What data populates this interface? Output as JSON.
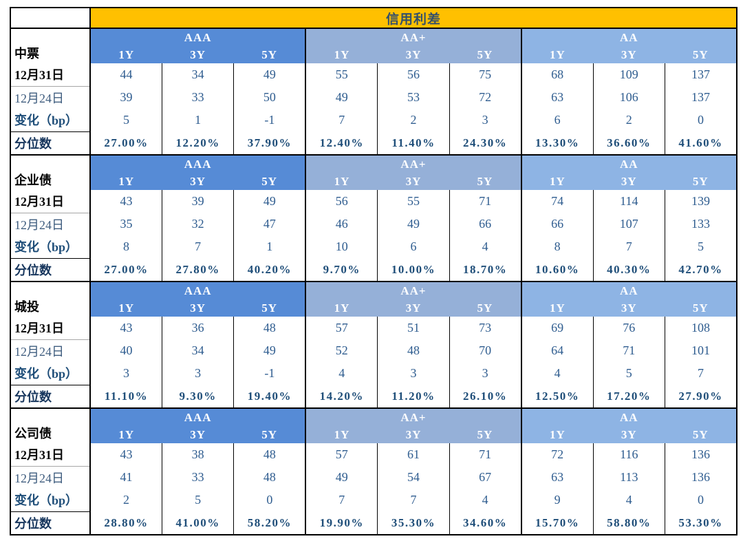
{
  "chart_data": {
    "type": "table",
    "title": "信用利差",
    "column_groups": [
      "AAA",
      "AA+",
      "AA"
    ],
    "sub_columns": [
      "1Y",
      "3Y",
      "5Y"
    ],
    "row_labels": [
      "12月31日",
      "12月24日",
      "变化（bp）",
      "分位数"
    ],
    "sections": [
      {
        "name": "中票",
        "rows": [
          [
            44,
            34,
            49,
            55,
            56,
            75,
            68,
            109,
            137
          ],
          [
            39,
            33,
            50,
            49,
            53,
            72,
            63,
            106,
            137
          ],
          [
            5,
            1,
            -1,
            7,
            2,
            3,
            6,
            2,
            0
          ],
          [
            "27.00%",
            "12.20%",
            "37.90%",
            "12.40%",
            "11.40%",
            "24.30%",
            "13.30%",
            "36.60%",
            "41.60%"
          ]
        ]
      },
      {
        "name": "企业债",
        "rows": [
          [
            43,
            39,
            49,
            56,
            55,
            71,
            74,
            114,
            139
          ],
          [
            35,
            32,
            47,
            46,
            49,
            66,
            66,
            107,
            133
          ],
          [
            8,
            7,
            1,
            10,
            6,
            4,
            8,
            7,
            5
          ],
          [
            "27.00%",
            "27.80%",
            "40.20%",
            "9.70%",
            "10.00%",
            "18.70%",
            "10.60%",
            "40.30%",
            "42.70%"
          ]
        ]
      },
      {
        "name": "城投",
        "rows": [
          [
            43,
            36,
            48,
            57,
            51,
            73,
            69,
            76,
            108
          ],
          [
            40,
            34,
            49,
            52,
            48,
            70,
            64,
            71,
            101
          ],
          [
            3,
            3,
            -1,
            4,
            3,
            3,
            4,
            5,
            7
          ],
          [
            "11.10%",
            "9.30%",
            "19.40%",
            "14.20%",
            "11.20%",
            "26.10%",
            "12.50%",
            "17.20%",
            "27.90%"
          ]
        ]
      },
      {
        "name": "公司债",
        "rows": [
          [
            43,
            38,
            48,
            57,
            61,
            71,
            72,
            116,
            136
          ],
          [
            41,
            33,
            48,
            49,
            54,
            67,
            63,
            113,
            136
          ],
          [
            2,
            5,
            0,
            7,
            7,
            4,
            9,
            4,
            0
          ],
          [
            "28.80%",
            "41.00%",
            "58.20%",
            "19.90%",
            "35.30%",
            "34.60%",
            "15.70%",
            "58.80%",
            "53.30%"
          ]
        ]
      }
    ],
    "colors": {
      "title_bg": "#FFC000",
      "title_text": "#34506B",
      "group_AAA_bg": "#568BD6",
      "group_AAplus_bg": "#95B0D8",
      "group_AA_bg": "#8EB4E4",
      "header_text": "#FFFFFF",
      "value_text": "#2E5C8F",
      "percent_text": "#1F4E79",
      "border": "#000000"
    },
    "layout_hints": {
      "label_column_first": true,
      "groups_of_three_tenors": 3,
      "grid": "bordered"
    }
  }
}
